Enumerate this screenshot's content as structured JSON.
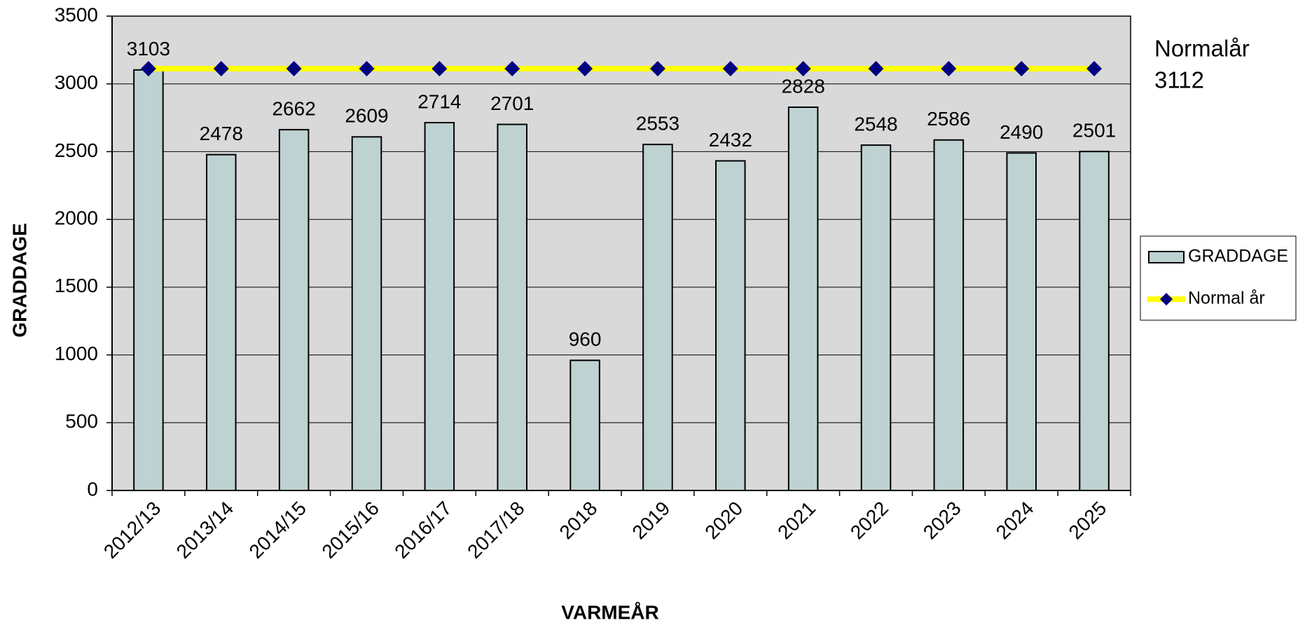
{
  "chart_data": {
    "type": "bar",
    "x_label": "VARMEÅR",
    "y_label": "GRADDAGE",
    "annotation": [
      "Normalår",
      "3112"
    ],
    "categories": [
      "2012/13",
      "2013/14",
      "2014/15",
      "2015/16",
      "2016/17",
      "2017/18",
      "2018",
      "2019",
      "2020",
      "2021",
      "2022",
      "2023",
      "2024",
      "2025"
    ],
    "series": [
      {
        "name": "GRADDAGE",
        "type": "bar",
        "color": "#bfd2d2",
        "values": [
          3103,
          2478,
          2662,
          2609,
          2714,
          2701,
          960,
          2553,
          2432,
          2828,
          2548,
          2586,
          2490,
          2501
        ]
      },
      {
        "name": "Normal år",
        "type": "line",
        "color": "#ffff00",
        "marker_color": "#000080",
        "values": [
          3112,
          3112,
          3112,
          3112,
          3112,
          3112,
          3112,
          3112,
          3112,
          3112,
          3112,
          3112,
          3112,
          3112
        ]
      }
    ],
    "ylim": [
      0,
      3500
    ],
    "yticks": [
      0,
      500,
      1000,
      1500,
      2000,
      2500,
      3000,
      3500
    ],
    "grid": true,
    "legend": "right",
    "plot_background": "#d9d9d9",
    "data_labels": [
      0
    ]
  }
}
